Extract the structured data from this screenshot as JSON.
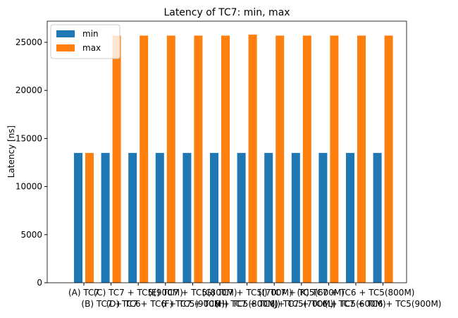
{
  "chart_data": {
    "type": "bar",
    "title": "Latency of TC7: min, max",
    "ylabel": "Latency [ns]",
    "categories": [
      "(A) TC7",
      "(B) TC7 + TC6",
      "(C) TC7 + TC5(900M)",
      "(D) TC7 + TC6 + TC5(900M)",
      "(E) TC7 + TC5(800M)",
      "(F) TC7 + TC6 + TC5(800M)",
      "(G) TC7 + TC5(700M)",
      "(H) TC7 + TC6 + TC5(700M)",
      "(I) TC7 + TC5(600M)",
      "(J) TC7 + TC6 + TC5(600M)",
      "(K) TC7 + TC6 + TC5(800M)",
      "(L) TC7 + TC6 + TC5(900M)"
    ],
    "series": [
      {
        "name": "min",
        "color": "#1f77b4",
        "values": [
          13500,
          13500,
          13500,
          13500,
          13500,
          13500,
          13500,
          13500,
          13500,
          13500,
          13500,
          13500
        ]
      },
      {
        "name": "max",
        "color": "#ff7f0e",
        "values": [
          13500,
          25700,
          25700,
          25700,
          25700,
          25700,
          25800,
          25700,
          25700,
          25700,
          25700,
          25700
        ]
      }
    ],
    "ylim": [
      0,
      27200
    ],
    "yticks": [
      0,
      5000,
      10000,
      15000,
      20000,
      25000
    ],
    "legend": "upper left"
  }
}
